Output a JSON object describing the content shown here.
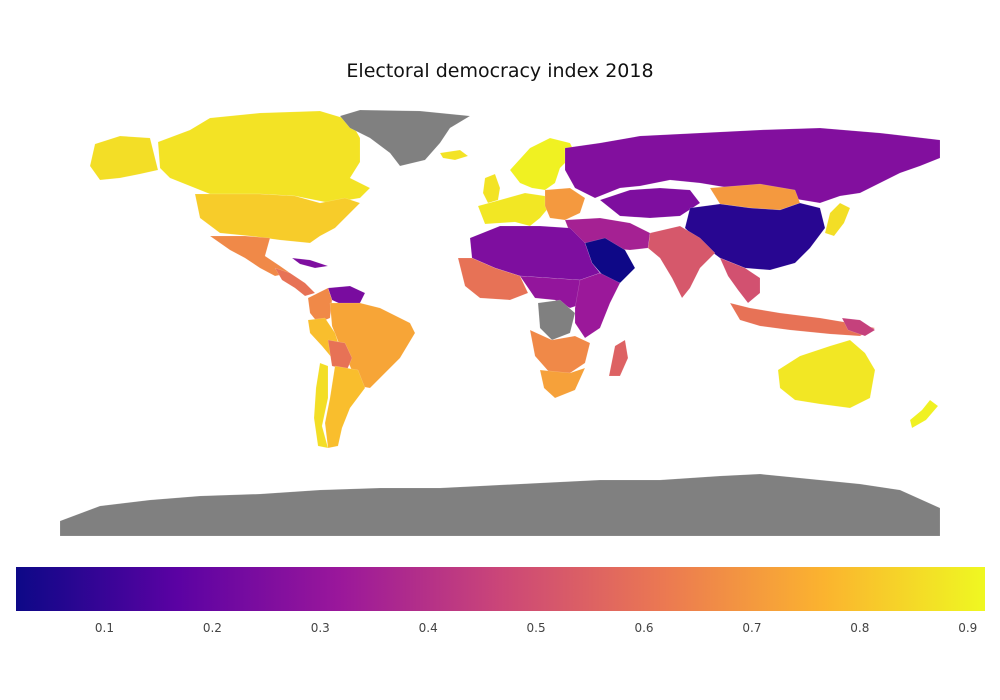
{
  "title": "Electoral democracy index 2018",
  "colorbar": {
    "min": 0.018,
    "max": 0.916,
    "colormap": "plasma",
    "stops": [
      "#0d0887",
      "#5b02a3",
      "#9a179b",
      "#cb4678",
      "#eb7852",
      "#fbb32f",
      "#eff821"
    ],
    "ticks": [
      "0.1",
      "0.2",
      "0.3",
      "0.4",
      "0.5",
      "0.6",
      "0.7",
      "0.8",
      "0.9"
    ]
  },
  "no_data_color": "#808080",
  "regions": [
    {
      "name": "Canada",
      "value": 0.87
    },
    {
      "name": "Alaska",
      "value": 0.86
    },
    {
      "name": "United States",
      "value": 0.82
    },
    {
      "name": "Mexico",
      "value": 0.66
    },
    {
      "name": "Central America",
      "value": 0.6
    },
    {
      "name": "Cuba",
      "value": 0.25
    },
    {
      "name": "Venezuela",
      "value": 0.24
    },
    {
      "name": "Colombia",
      "value": 0.66
    },
    {
      "name": "Brazil",
      "value": 0.73
    },
    {
      "name": "Peru",
      "value": 0.79
    },
    {
      "name": "Bolivia",
      "value": 0.6
    },
    {
      "name": "Argentina",
      "value": 0.79
    },
    {
      "name": "Chile",
      "value": 0.86
    },
    {
      "name": "Greenland",
      "value": null
    },
    {
      "name": "Iceland",
      "value": 0.87
    },
    {
      "name": "Scandinavia",
      "value": 0.9
    },
    {
      "name": "United Kingdom",
      "value": 0.87
    },
    {
      "name": "Western Europe",
      "value": 0.88
    },
    {
      "name": "Eastern Europe",
      "value": 0.7
    },
    {
      "name": "Russia",
      "value": 0.26
    },
    {
      "name": "Kazakhstan",
      "value": 0.25
    },
    {
      "name": "Mongolia",
      "value": 0.7
    },
    {
      "name": "China",
      "value": 0.07
    },
    {
      "name": "India",
      "value": 0.52
    },
    {
      "name": "Southeast Asia",
      "value": 0.5
    },
    {
      "name": "Indonesia",
      "value": 0.6
    },
    {
      "name": "Japan",
      "value": 0.86
    },
    {
      "name": "Middle East",
      "value": 0.35
    },
    {
      "name": "Saudi Arabia",
      "value": 0.02
    },
    {
      "name": "North Africa",
      "value": 0.25
    },
    {
      "name": "West Africa",
      "value": 0.6
    },
    {
      "name": "Central Africa",
      "value": 0.3
    },
    {
      "name": "DR Congo",
      "value": null
    },
    {
      "name": "East Africa",
      "value": 0.32
    },
    {
      "name": "Southern Africa",
      "value": 0.66
    },
    {
      "name": "South Africa",
      "value": 0.72
    },
    {
      "name": "Madagascar",
      "value": 0.55
    },
    {
      "name": "Australia",
      "value": 0.88
    },
    {
      "name": "New Zealand",
      "value": 0.9
    },
    {
      "name": "Papua New Guinea",
      "value": 0.45
    },
    {
      "name": "Antarctica",
      "value": null
    }
  ]
}
